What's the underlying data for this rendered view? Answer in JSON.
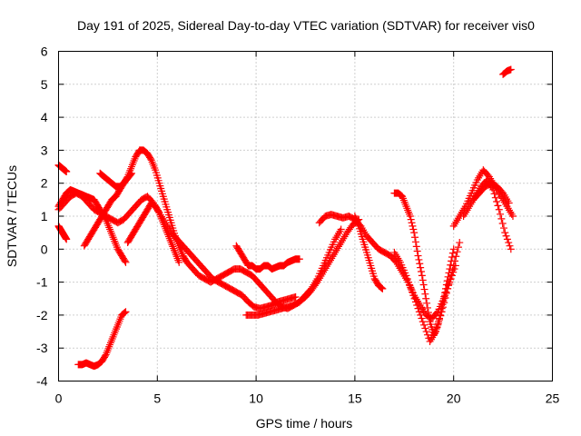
{
  "chart_data": {
    "type": "scatter",
    "title": "Day 191 of 2025, Sidereal Day-to-day VTEC variation (SDTVAR) for receiver vis0",
    "xlabel": "GPS time / hours",
    "ylabel": "SDTVAR / TECUs",
    "xlim": [
      0,
      25
    ],
    "ylim": [
      -4,
      6
    ],
    "xticks": [
      0,
      5,
      10,
      15,
      20,
      25
    ],
    "yticks": [
      -4,
      -3,
      -2,
      -1,
      0,
      1,
      2,
      3,
      4,
      5,
      6
    ],
    "grid": true,
    "marker": "+",
    "color": "#ff0000",
    "series": [
      {
        "name": "trace-1",
        "x": [
          0.0,
          0.2,
          0.4,
          0.6,
          0.8,
          1.0,
          1.2,
          1.4,
          1.6,
          1.8,
          2.0,
          2.2,
          2.4,
          2.6,
          2.8,
          3.0,
          3.2,
          3.4
        ],
        "y": [
          1.3,
          1.5,
          1.7,
          1.8,
          1.75,
          1.7,
          1.65,
          1.6,
          1.55,
          1.5,
          1.3,
          1.1,
          0.9,
          0.6,
          0.3,
          0.0,
          -0.2,
          -0.4
        ]
      },
      {
        "name": "trace-2",
        "x": [
          0.0,
          0.1,
          0.2,
          0.3,
          0.4
        ],
        "y": [
          2.55,
          2.5,
          2.45,
          2.4,
          2.35
        ]
      },
      {
        "name": "trace-3",
        "x": [
          0.0,
          0.1,
          0.2,
          0.3,
          0.4
        ],
        "y": [
          0.7,
          0.6,
          0.5,
          0.4,
          0.3
        ]
      },
      {
        "name": "trace-4",
        "x": [
          0.0,
          0.3,
          0.6,
          0.9,
          1.2,
          1.5,
          1.8,
          2.1,
          2.4,
          2.7,
          3.0,
          3.3,
          3.6,
          3.9,
          4.2,
          4.5,
          4.8,
          5.1,
          5.4,
          5.7,
          6.0,
          6.3,
          6.6,
          6.9,
          7.2,
          7.5,
          7.8,
          8.1,
          8.4,
          8.7,
          9.0,
          9.3,
          9.6,
          9.9,
          10.2,
          10.5,
          10.8,
          11.1,
          11.4,
          11.7,
          12.0
        ],
        "y": [
          1.2,
          1.4,
          1.6,
          1.7,
          1.6,
          1.4,
          1.2,
          1.1,
          1.0,
          0.9,
          0.8,
          0.9,
          1.1,
          1.3,
          1.5,
          1.6,
          1.4,
          1.1,
          0.8,
          0.5,
          0.3,
          0.1,
          -0.1,
          -0.3,
          -0.5,
          -0.7,
          -0.9,
          -1.0,
          -1.1,
          -1.2,
          -1.3,
          -1.4,
          -1.6,
          -1.75,
          -1.8,
          -1.75,
          -1.7,
          -1.6,
          -1.55,
          -1.5,
          -1.45
        ]
      },
      {
        "name": "trace-5",
        "x": [
          1.0,
          1.2,
          1.4,
          1.6,
          1.8,
          2.0,
          2.2,
          2.4,
          2.6,
          2.8,
          3.0,
          3.2,
          3.4
        ],
        "y": [
          -3.5,
          -3.5,
          -3.45,
          -3.5,
          -3.55,
          -3.5,
          -3.4,
          -3.2,
          -2.9,
          -2.6,
          -2.3,
          -2.0,
          -1.9
        ]
      },
      {
        "name": "trace-6",
        "x": [
          1.3,
          1.5,
          1.7,
          1.9,
          2.1,
          2.3,
          2.5,
          2.7,
          2.9,
          3.1,
          3.3,
          3.5,
          3.7,
          3.9,
          4.1,
          4.3,
          4.5,
          4.7,
          4.9,
          5.1,
          5.3,
          5.5,
          5.7,
          5.9,
          6.1,
          6.3,
          6.5,
          6.8,
          7.1,
          7.4,
          7.7,
          8.0,
          8.3,
          8.6,
          8.9,
          9.2,
          9.5,
          9.8,
          10.1,
          10.4,
          10.7,
          11.0,
          11.3,
          11.6,
          11.9,
          12.2,
          12.5,
          12.8,
          13.1,
          13.4,
          13.7,
          14.0,
          14.3
        ],
        "y": [
          0.1,
          0.3,
          0.5,
          0.7,
          0.9,
          1.1,
          1.3,
          1.5,
          1.6,
          1.8,
          2.0,
          2.2,
          2.5,
          2.8,
          3.0,
          3.0,
          2.9,
          2.7,
          2.4,
          2.0,
          1.6,
          1.2,
          0.8,
          0.4,
          0.1,
          -0.2,
          -0.4,
          -0.6,
          -0.8,
          -0.9,
          -1.0,
          -0.9,
          -0.8,
          -0.7,
          -0.6,
          -0.6,
          -0.7,
          -0.8,
          -1.0,
          -1.2,
          -1.4,
          -1.6,
          -1.75,
          -1.8,
          -1.7,
          -1.6,
          -1.4,
          -1.2,
          -0.9,
          -0.5,
          -0.1,
          0.3,
          0.6
        ]
      },
      {
        "name": "trace-7",
        "x": [
          2.1,
          2.3,
          2.5,
          2.7,
          2.9,
          3.1,
          3.3,
          3.5,
          3.7
        ],
        "y": [
          2.3,
          2.2,
          2.1,
          2.0,
          1.9,
          1.9,
          2.0,
          2.15,
          2.3
        ]
      },
      {
        "name": "trace-8",
        "x": [
          3.5,
          3.7,
          3.9,
          4.1,
          4.3,
          4.5,
          4.7,
          4.9,
          5.1,
          5.3,
          5.5,
          5.7,
          5.9,
          6.1
        ],
        "y": [
          0.2,
          0.4,
          0.6,
          0.8,
          1.0,
          1.2,
          1.4,
          1.3,
          1.1,
          0.8,
          0.5,
          0.2,
          -0.1,
          -0.4
        ]
      },
      {
        "name": "trace-9",
        "x": [
          9.0,
          9.2,
          9.4,
          9.6,
          9.8,
          10.0,
          10.2,
          10.4,
          10.6,
          10.8,
          11.0,
          11.2,
          11.4,
          11.6,
          11.8,
          12.0,
          12.2
        ],
        "y": [
          0.1,
          -0.1,
          -0.3,
          -0.5,
          -0.5,
          -0.6,
          -0.6,
          -0.5,
          -0.5,
          -0.6,
          -0.55,
          -0.5,
          -0.5,
          -0.4,
          -0.35,
          -0.3,
          -0.3
        ]
      },
      {
        "name": "trace-10",
        "x": [
          9.5,
          9.8,
          10.1,
          10.4,
          10.7,
          11.0,
          11.3,
          11.6,
          11.9,
          12.2,
          12.5,
          12.8,
          13.1,
          13.4,
          13.7,
          14.0,
          14.3,
          14.6,
          14.9,
          15.2
        ],
        "y": [
          -2.0,
          -2.0,
          -2.0,
          -1.95,
          -1.9,
          -1.85,
          -1.8,
          -1.75,
          -1.7,
          -1.6,
          -1.45,
          -1.25,
          -1.0,
          -0.7,
          -0.4,
          -0.1,
          0.2,
          0.5,
          0.75,
          0.9
        ]
      },
      {
        "name": "trace-11",
        "x": [
          13.2,
          13.5,
          13.8,
          14.1,
          14.4,
          14.7,
          15.0,
          15.3,
          15.6,
          15.9,
          16.2,
          16.5,
          16.8,
          17.1,
          17.4,
          17.7,
          18.0,
          18.3,
          18.6,
          18.9,
          19.2,
          19.5,
          19.8,
          20.1
        ],
        "y": [
          0.8,
          1.0,
          1.05,
          1.0,
          0.95,
          1.0,
          0.9,
          0.7,
          0.4,
          0.2,
          0.0,
          -0.1,
          -0.2,
          -0.4,
          -0.7,
          -1.0,
          -1.4,
          -1.7,
          -2.0,
          -2.1,
          -1.9,
          -1.5,
          -1.0,
          -0.5
        ]
      },
      {
        "name": "trace-12",
        "x": [
          15.0,
          15.2,
          15.4,
          15.6,
          15.8,
          16.0,
          16.2,
          16.4
        ],
        "y": [
          1.0,
          0.7,
          0.3,
          -0.1,
          -0.5,
          -0.9,
          -1.1,
          -1.2
        ]
      },
      {
        "name": "trace-13",
        "x": [
          17.0,
          17.2,
          17.4,
          17.6,
          17.8,
          18.0,
          18.2,
          18.4,
          18.6,
          18.8,
          19.0,
          19.2,
          19.4,
          19.6,
          19.8,
          20.0
        ],
        "y": [
          1.7,
          1.7,
          1.6,
          1.3,
          1.0,
          0.5,
          -0.2,
          -0.8,
          -1.5,
          -2.2,
          -2.6,
          -2.3,
          -1.8,
          -1.2,
          -0.6,
          0.0
        ]
      },
      {
        "name": "trace-14",
        "x": [
          17.0,
          17.3,
          17.6,
          17.9,
          18.2,
          18.5,
          18.8,
          19.1,
          19.4,
          19.7,
          20.0,
          20.3
        ],
        "y": [
          -0.1,
          -0.4,
          -0.8,
          -1.3,
          -1.8,
          -2.3,
          -2.8,
          -2.5,
          -1.9,
          -1.2,
          -0.5,
          0.2
        ]
      },
      {
        "name": "trace-15",
        "x": [
          20.0,
          20.3,
          20.6,
          20.9,
          21.2,
          21.5,
          21.8,
          22.1,
          22.4,
          22.7,
          23.0
        ],
        "y": [
          0.7,
          1.0,
          1.3,
          1.7,
          2.1,
          2.4,
          2.2,
          1.9,
          1.6,
          1.3,
          1.0
        ]
      },
      {
        "name": "trace-16",
        "x": [
          20.5,
          20.8,
          21.1,
          21.4,
          21.7,
          22.0,
          22.3,
          22.6,
          22.9
        ],
        "y": [
          1.0,
          1.3,
          1.6,
          1.9,
          2.1,
          1.8,
          1.2,
          0.5,
          0.0
        ]
      },
      {
        "name": "trace-17",
        "x": [
          21.0,
          21.3,
          21.6,
          21.9,
          22.2,
          22.5,
          22.8
        ],
        "y": [
          1.5,
          1.7,
          1.9,
          2.0,
          1.9,
          1.7,
          1.4
        ]
      },
      {
        "name": "trace-18",
        "x": [
          22.5,
          22.7,
          22.9
        ],
        "y": [
          5.3,
          5.4,
          5.45
        ]
      }
    ]
  }
}
